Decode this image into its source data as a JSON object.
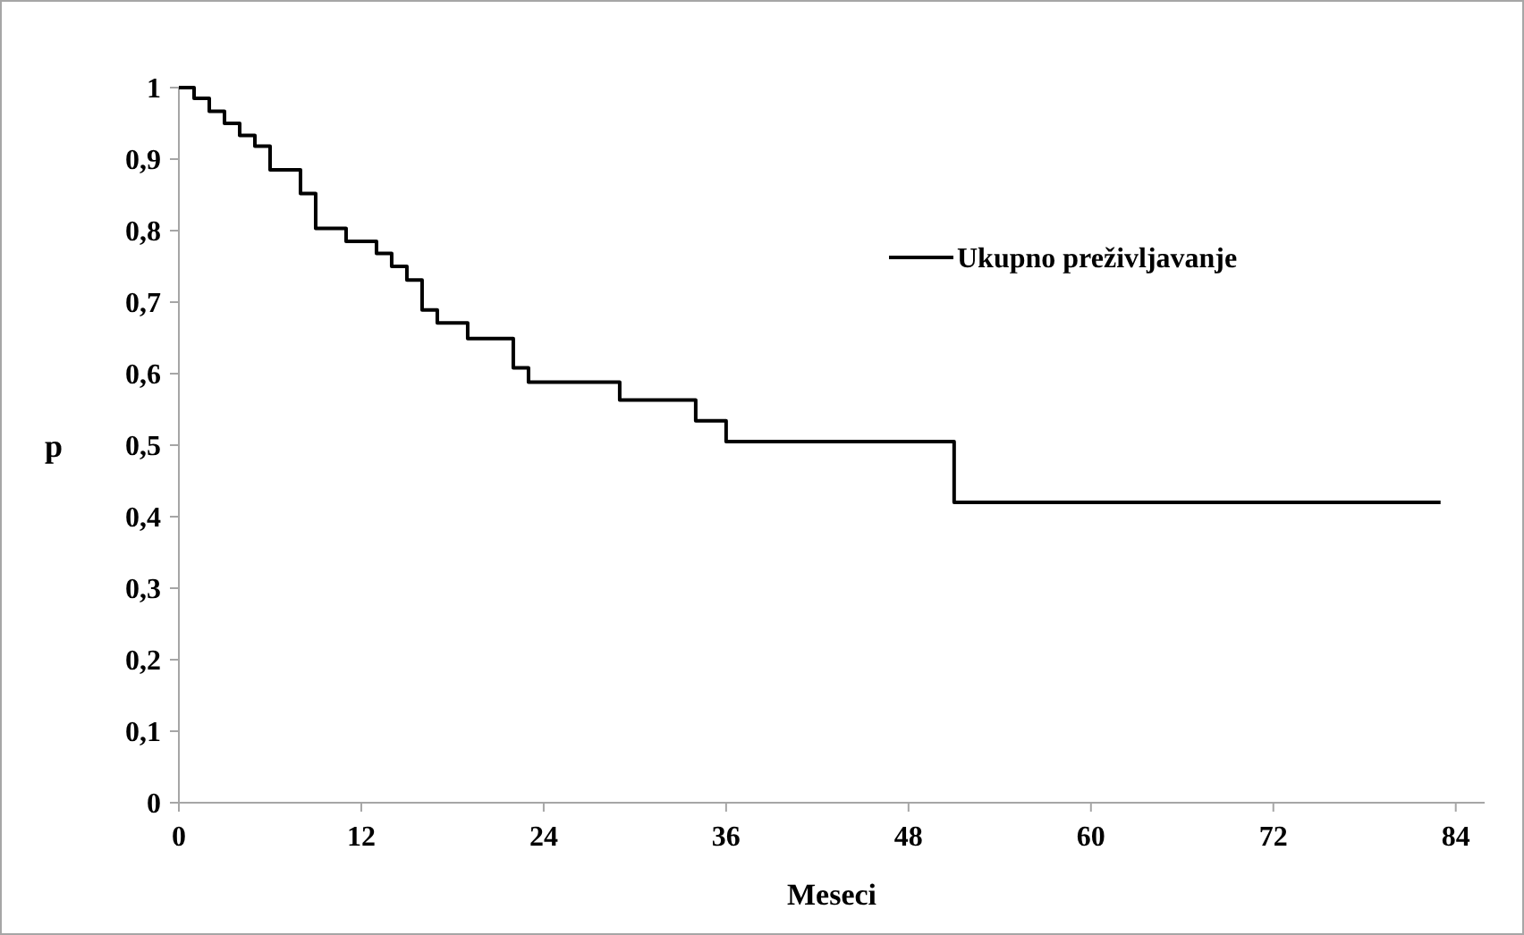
{
  "chart_data": {
    "type": "step",
    "xlabel": "Meseci",
    "ylabel": "p",
    "x": [
      0,
      1,
      2,
      3,
      4,
      5,
      6,
      8,
      9,
      11,
      13,
      14,
      15,
      16,
      17,
      19,
      22,
      23,
      29,
      34,
      36,
      51,
      83
    ],
    "series": [
      {
        "name": "Ukupno preživljavanje",
        "color": "#000000",
        "values": [
          1,
          0.985,
          0.967,
          0.95,
          0.933,
          0.918,
          0.885,
          0.852,
          0.803,
          0.785,
          0.768,
          0.75,
          0.731,
          0.689,
          0.671,
          0.649,
          0.608,
          0.588,
          0.563,
          0.534,
          0.505,
          0.42,
          0.42
        ]
      }
    ],
    "xlim": [
      0,
      85.9
    ],
    "xticks": [
      0,
      12,
      24,
      36,
      48,
      60,
      72,
      84
    ],
    "ylim": [
      0,
      1
    ],
    "yticks": [
      {
        "value": 0,
        "label": "0"
      },
      {
        "value": 0.1,
        "label": "0,1"
      },
      {
        "value": 0.2,
        "label": "0,2"
      },
      {
        "value": 0.3,
        "label": "0,3"
      },
      {
        "value": 0.4,
        "label": "0,4"
      },
      {
        "value": 0.5,
        "label": "0,5"
      },
      {
        "value": 0.6,
        "label": "0,6"
      },
      {
        "value": 0.7,
        "label": "0,7"
      },
      {
        "value": 0.8,
        "label": "0,8"
      },
      {
        "value": 0.9,
        "label": "0,9"
      },
      {
        "value": 1,
        "label": "1"
      }
    ],
    "grid": false,
    "legend": "top right",
    "marker": "none",
    "line_style": "solid"
  }
}
